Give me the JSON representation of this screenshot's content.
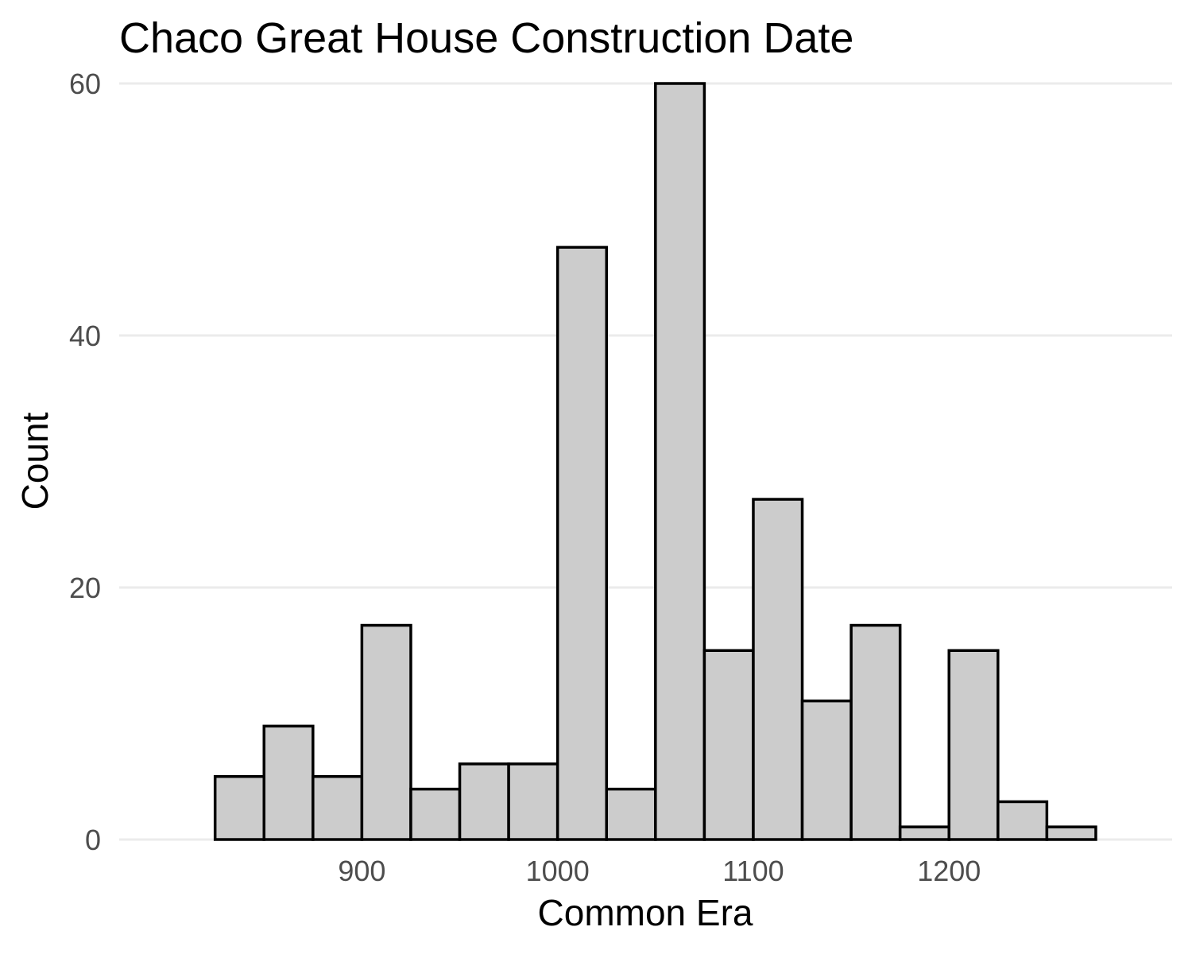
{
  "chart_data": {
    "type": "bar",
    "subtype": "histogram",
    "title": "Chaco Great House Construction Date",
    "xlabel": "Common Era",
    "ylabel": "Count",
    "bin_width": 25,
    "bins": [
      {
        "start": 825,
        "end": 850,
        "count": 5
      },
      {
        "start": 850,
        "end": 875,
        "count": 9
      },
      {
        "start": 875,
        "end": 900,
        "count": 5
      },
      {
        "start": 900,
        "end": 925,
        "count": 17
      },
      {
        "start": 925,
        "end": 950,
        "count": 4
      },
      {
        "start": 950,
        "end": 975,
        "count": 6
      },
      {
        "start": 975,
        "end": 1000,
        "count": 6
      },
      {
        "start": 1000,
        "end": 1025,
        "count": 47
      },
      {
        "start": 1025,
        "end": 1050,
        "count": 4
      },
      {
        "start": 1050,
        "end": 1075,
        "count": 60
      },
      {
        "start": 1075,
        "end": 1100,
        "count": 15
      },
      {
        "start": 1100,
        "end": 1125,
        "count": 27
      },
      {
        "start": 1125,
        "end": 1150,
        "count": 11
      },
      {
        "start": 1150,
        "end": 1175,
        "count": 17
      },
      {
        "start": 1175,
        "end": 1200,
        "count": 1
      },
      {
        "start": 1200,
        "end": 1225,
        "count": 15
      },
      {
        "start": 1225,
        "end": 1250,
        "count": 3
      },
      {
        "start": 1250,
        "end": 1275,
        "count": 1
      }
    ],
    "xlim": [
      776,
      1314
    ],
    "ylim": [
      0,
      60
    ],
    "x_ticks": [
      900,
      1000,
      1100,
      1200
    ],
    "x_tick_labels": [
      "900",
      "1000",
      "1100",
      "1200"
    ],
    "y_ticks": [
      0,
      20,
      40,
      60
    ],
    "y_tick_labels": [
      "0",
      "20",
      "40",
      "60"
    ],
    "grid": "horizontal major lines",
    "legend": "none",
    "colors": {
      "bar_fill": "#cccccc",
      "bar_outline": "#000000",
      "grid": "#ebebeb",
      "tick_text": "#4d4d4d",
      "title_text": "#000000"
    }
  }
}
